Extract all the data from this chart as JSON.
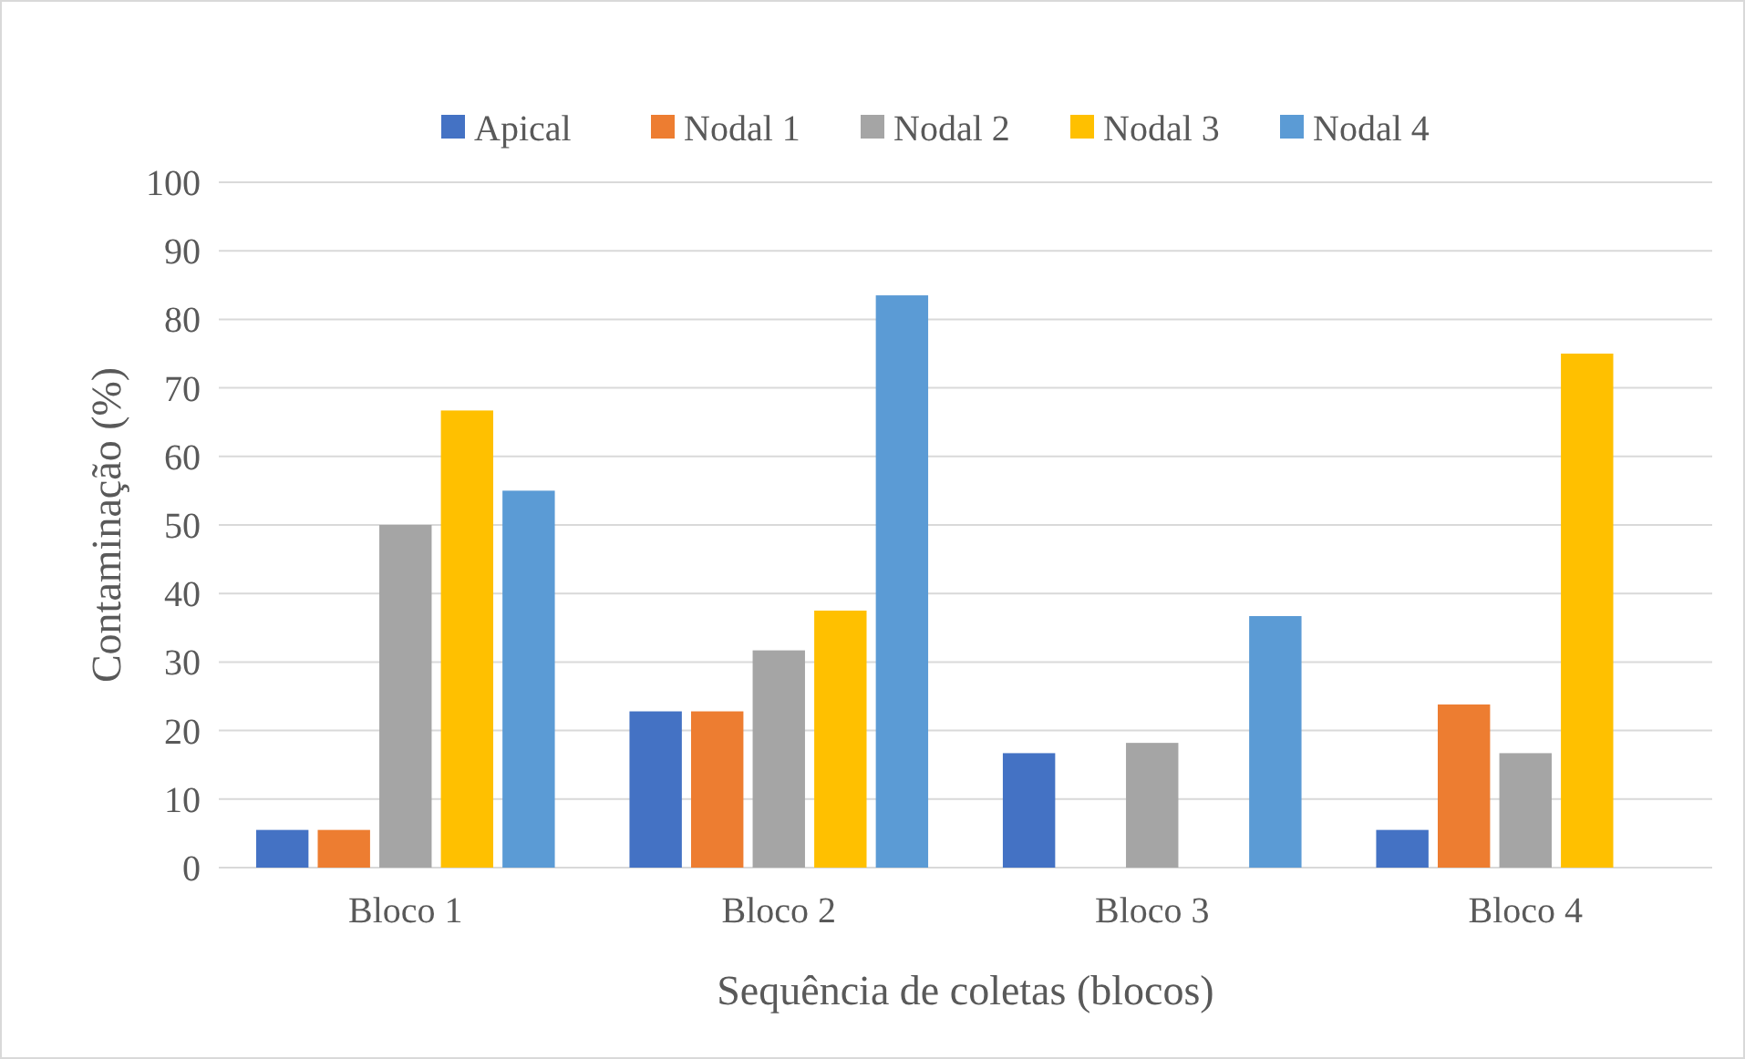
{
  "chart_data": {
    "type": "bar",
    "xlabel": "Sequência de coletas (blocos)",
    "ylabel": "Contaminação (%)",
    "categories": [
      "Bloco 1",
      "Bloco 2",
      "Bloco 3",
      "Bloco 4"
    ],
    "series": [
      {
        "name": "Apical",
        "color": "#4472c4",
        "values": [
          5.5,
          22.8,
          16.7,
          5.5
        ]
      },
      {
        "name": "Nodal 1",
        "color": "#ed7d31",
        "values": [
          5.5,
          22.8,
          0,
          23.8
        ]
      },
      {
        "name": "Nodal 2",
        "color": "#a5a5a5",
        "values": [
          50,
          31.7,
          18.2,
          16.7
        ]
      },
      {
        "name": "Nodal 3",
        "color": "#ffc000",
        "values": [
          66.7,
          37.5,
          0,
          75
        ]
      },
      {
        "name": "Nodal 4",
        "color": "#5b9bd5",
        "values": [
          55,
          83.5,
          36.7,
          0
        ]
      }
    ],
    "ylim": [
      0,
      100
    ],
    "yticks": [
      0,
      10,
      20,
      30,
      40,
      50,
      60,
      70,
      80,
      90,
      100
    ],
    "grid": "y",
    "legend": "top"
  }
}
